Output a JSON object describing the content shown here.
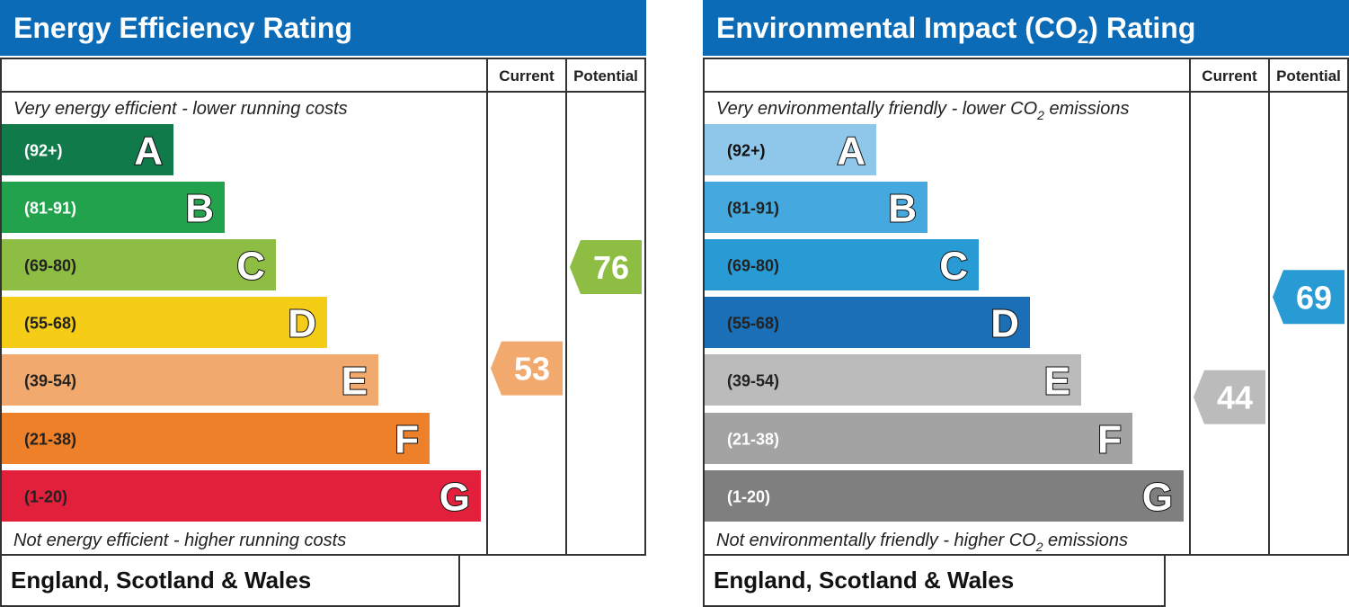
{
  "chart_data": [
    {
      "type": "bar",
      "title": "Energy Efficiency Rating",
      "columns": {
        "current": "Current",
        "potential": "Potential"
      },
      "top_caption": "Very energy efficient - lower running costs",
      "bottom_caption": "Not energy efficient - higher running costs",
      "footer": "England, Scotland & Wales",
      "bands": [
        {
          "letter": "A",
          "range": "(92+)",
          "color": "#117a4b",
          "text_color": "#ffffff"
        },
        {
          "letter": "B",
          "range": "(81-91)",
          "color": "#23a24d",
          "text_color": "#ffffff"
        },
        {
          "letter": "C",
          "range": "(69-80)",
          "color": "#8dbd42",
          "text_color": "#222222"
        },
        {
          "letter": "D",
          "range": "(55-68)",
          "color": "#f5cd17",
          "text_color": "#222222"
        },
        {
          "letter": "E",
          "range": "(39-54)",
          "color": "#f2a96d",
          "text_color": "#222222"
        },
        {
          "letter": "F",
          "range": "(21-38)",
          "color": "#ee8029",
          "text_color": "#222222"
        },
        {
          "letter": "G",
          "range": "(1-20)",
          "color": "#e2203b",
          "text_color": "#222222"
        }
      ],
      "current": {
        "value": 53,
        "band": "E",
        "color": "#f2a96d"
      },
      "potential": {
        "value": 76,
        "band": "C",
        "color": "#8dbd42"
      }
    },
    {
      "type": "bar",
      "title": "Environmental Impact (CO2) Rating",
      "title_parts": {
        "pre": "Environmental Impact (CO",
        "sub": "2",
        "post": ") Rating"
      },
      "columns": {
        "current": "Current",
        "potential": "Potential"
      },
      "top_caption": "Very environmentally friendly - lower CO2 emissions",
      "top_caption_parts": {
        "pre": "Very environmentally friendly - lower CO",
        "sub": "2",
        "post": " emissions"
      },
      "bottom_caption": "Not environmentally friendly - higher CO2 emissions",
      "bottom_caption_parts": {
        "pre": "Not environmentally friendly - higher CO",
        "sub": "2",
        "post": " emissions"
      },
      "footer": "England, Scotland & Wales",
      "bands": [
        {
          "letter": "A",
          "range": "(92+)",
          "color": "#8fc7ea",
          "text_color": "#111111"
        },
        {
          "letter": "B",
          "range": "(81-91)",
          "color": "#45a8de",
          "text_color": "#222222"
        },
        {
          "letter": "C",
          "range": "(69-80)",
          "color": "#289bd4",
          "text_color": "#222222"
        },
        {
          "letter": "D",
          "range": "(55-68)",
          "color": "#1a6fb6",
          "text_color": "#222222"
        },
        {
          "letter": "E",
          "range": "(39-54)",
          "color": "#bbbbbb",
          "text_color": "#222222"
        },
        {
          "letter": "F",
          "range": "(21-38)",
          "color": "#a3a3a3",
          "text_color": "#ffffff"
        },
        {
          "letter": "G",
          "range": "(1-20)",
          "color": "#7f7f7f",
          "text_color": "#ffffff"
        }
      ],
      "current": {
        "value": 44,
        "band": "E",
        "color": "#bbbbbb"
      },
      "potential": {
        "value": 69,
        "band": "C",
        "color": "#289bd4"
      }
    }
  ],
  "colors": {
    "header": "#0b6bb7",
    "border": "#333333"
  }
}
